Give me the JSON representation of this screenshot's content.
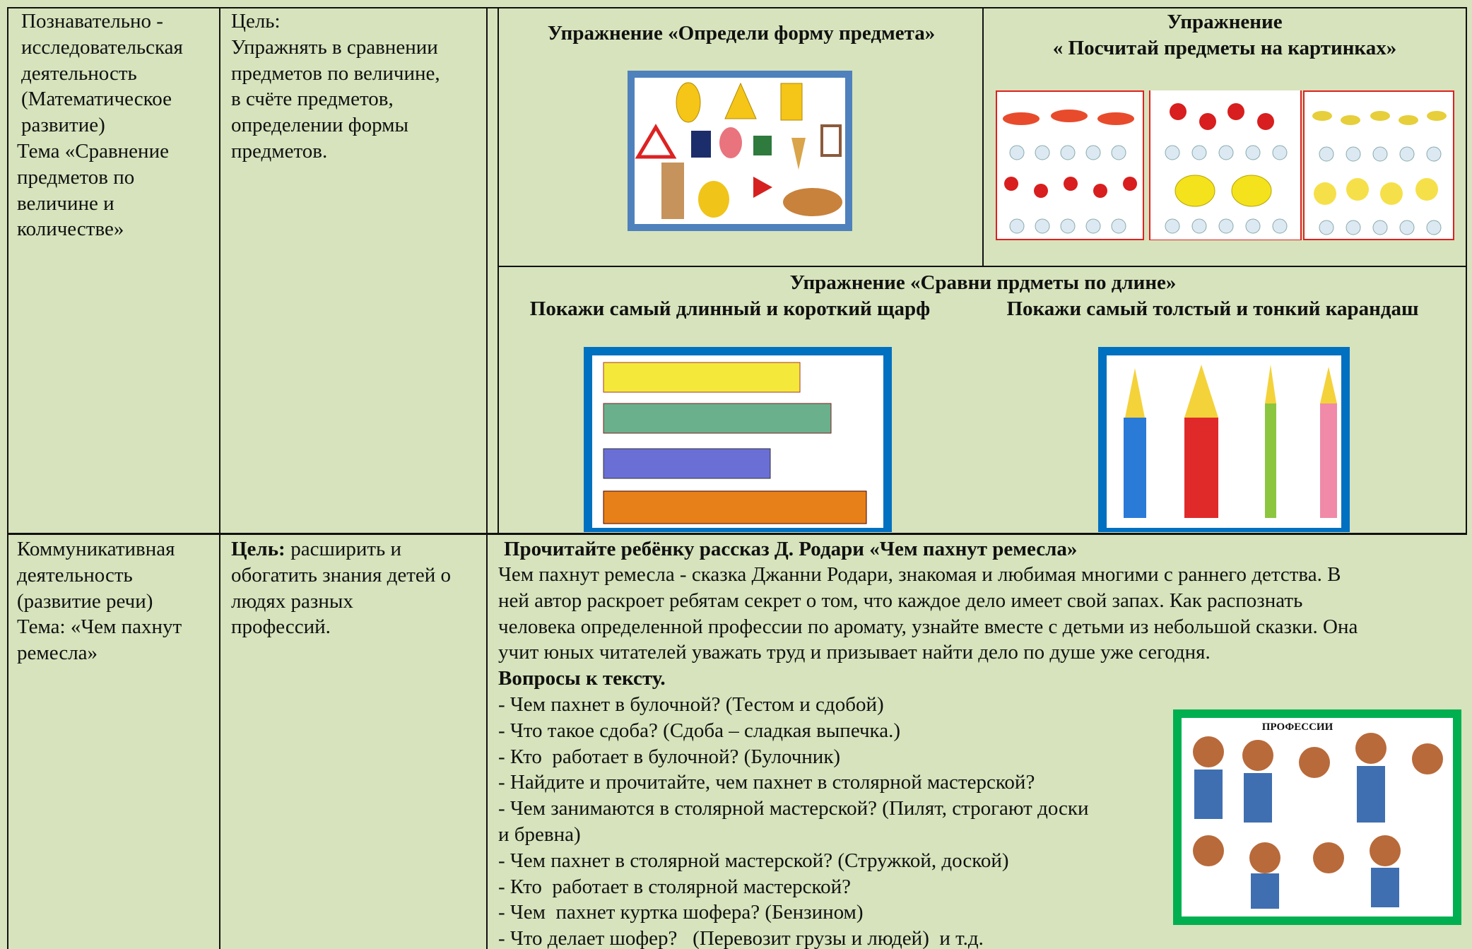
{
  "table": {
    "rows": [
      {
        "activity": [
          "Познавательно -",
          "исследовательская",
          "деятельность",
          "(Математическое",
          "развитие)",
          "Тема «Сравнение",
          "предметов по",
          "величине и",
          "количестве»"
        ],
        "goal": [
          "Цель:",
          "Упражнять в сравнении",
          "предметов по величине,",
          "в счёте предметов,",
          "определении формы",
          "предметов."
        ],
        "exercises": {
          "shape_title": "Упражнение «Определи форму предмета»",
          "count_title": [
            "Упражнение",
            "« Посчитай предметы на картинках»"
          ],
          "length_title": "Упражнение «Сравни прдметы по длине»",
          "scarf_task": "Покажи самый длинный и короткий щарф",
          "pencil_task": "Покажи самый толстый и тонкий карандаш"
        }
      },
      {
        "activity": [
          "Коммуникативная",
          "деятельность",
          "(развитие речи)",
          "Тема: «Чем пахнут",
          "ремесла»"
        ],
        "goal_label": "Цель:",
        "goal": [
          " расширить и",
          "обогатить знания детей о",
          "людях разных",
          "профессий."
        ],
        "content": {
          "title": "Прочитайте ребёнку рассказ Д. Родари «Чем пахнут ремесла»",
          "paragraph": [
            "Чем пахнут ремесла - сказка Джанни Родари, знакомая и любимая многими с раннего детства. В",
            "ней автор раскроет ребятам секрет о том, что каждое дело имеет свой запах. Как распознать",
            "человека определенной профессии по аромату, узнайте вместе с детьми из небольшой сказки. Она",
            "учит юных читателей уважать труд и призывает найти дело по душе уже сегодня."
          ],
          "questions_title": "Вопросы к тексту.",
          "questions": [
            "- Чем пахнет в булочной? (Тестом и сдобой)",
            "- Что такое сдоба? (Сдоба – сладкая выпечка.)",
            "- Кто  работает в булочной? (Булочник)",
            "- Найдите и прочитайте, чем пахнет в столярной мастерской?",
            "- Чем занимаются в столярной мастерской? (Пилят, строгают доски",
            "и бревна)",
            "- Чем пахнет в столярной мастерской? (Стружкой, доской)",
            "- Кто  работает в столярной мастерской?",
            "- Чем  пахнет куртка шофера? (Бензином)",
            "- Что делает шофер?   (Перевозит грузы и людей)  и т.д."
          ],
          "poster_title": "ПРОФЕССИИ"
        }
      }
    ]
  }
}
